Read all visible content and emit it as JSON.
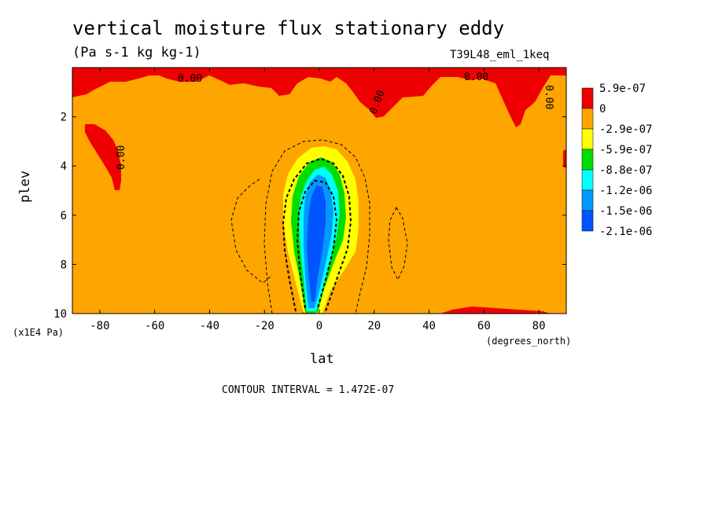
{
  "chart_data": {
    "type": "heatmap",
    "title": "vertical moisture flux stationary eddy",
    "units": "(Pa s-1 kg kg-1)",
    "run_label": "T39L48_eml_1keq",
    "xlabel": "lat",
    "xunit": "(degrees_north)",
    "ylabel": "plev",
    "yunit": "(x1E4 Pa)",
    "xlim": [
      -90,
      90
    ],
    "ylim": [
      10,
      0
    ],
    "x_ticks": [
      -80,
      -60,
      -40,
      -20,
      0,
      20,
      40,
      60,
      80
    ],
    "y_ticks": [
      2,
      4,
      6,
      8,
      10
    ],
    "contour_interval_text": "CONTOUR INTERVAL = 1.472E-07",
    "contour_labels": [
      "0.00",
      "0.00",
      "0.00",
      "0.00",
      "0.00"
    ],
    "colorbar": {
      "labels": [
        "5.9e-07",
        "0",
        "-2.9e-07",
        "-5.9e-07",
        "-8.8e-07",
        "-1.2e-06",
        "-1.5e-06",
        "-2.1e-06"
      ],
      "colors": [
        "#ee0000",
        "#ffa500",
        "#ffff00",
        "#00dd00",
        "#00ffff",
        "#0099ff",
        "#0055ff"
      ]
    },
    "features": [
      {
        "region": "upper layer near top, lat -85 to 85",
        "level_range": [
          0.2,
          1.2
        ],
        "category": "> 0"
      },
      {
        "region": "southern high latitudes, lat -80 to -70",
        "level_range": [
          2.4,
          5.0
        ],
        "category": "> 0"
      },
      {
        "region": "equatorial column, lat -12 to 10",
        "level_range": [
          3.5,
          10.0
        ],
        "category": "< -2.1e-06 core"
      },
      {
        "region": "surface patches near lat 0, 45-85",
        "level_range": [
          9.5,
          10.0
        ],
        "category": "> 0"
      }
    ]
  }
}
